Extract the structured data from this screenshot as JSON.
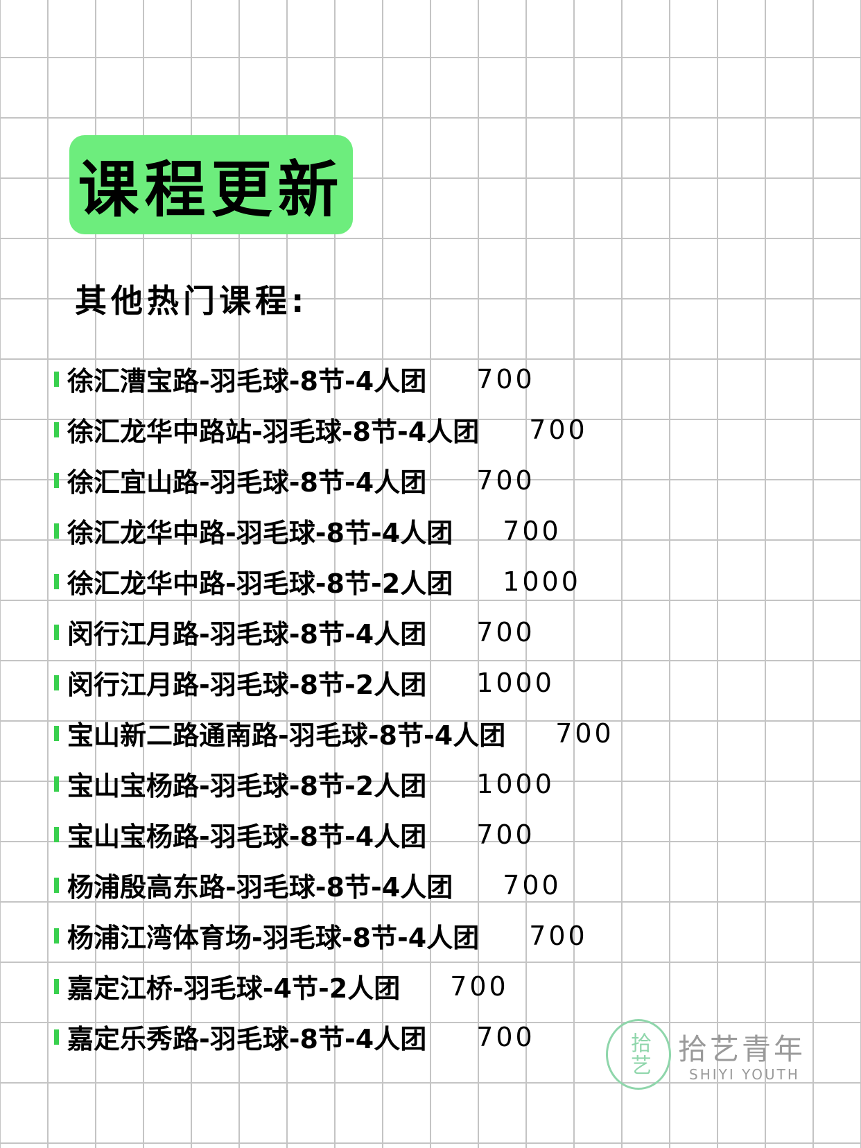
{
  "header": {
    "title": "课程更新",
    "subtitle": "其他热门课程:"
  },
  "courses": [
    {
      "name": "徐汇漕宝路-羽毛球-8节-4人团",
      "price": 700
    },
    {
      "name": "徐汇龙华中路站-羽毛球-8节-4人团",
      "price": 700
    },
    {
      "name": "徐汇宜山路-羽毛球-8节-4人团",
      "price": 700
    },
    {
      "name": "徐汇龙华中路-羽毛球-8节-4人团",
      "price": 700
    },
    {
      "name": "徐汇龙华中路-羽毛球-8节-2人团",
      "price": 1000
    },
    {
      "name": "闵行江月路-羽毛球-8节-4人团",
      "price": 700
    },
    {
      "name": "闵行江月路-羽毛球-8节-2人团",
      "price": 1000
    },
    {
      "name": "宝山新二路通南路-羽毛球-8节-4人团",
      "price": 700
    },
    {
      "name": "宝山宝杨路-羽毛球-8节-2人团",
      "price": 1000
    },
    {
      "name": "宝山宝杨路-羽毛球-8节-4人团",
      "price": 700
    },
    {
      "name": "杨浦殷高东路-羽毛球-8节-4人团",
      "price": 700
    },
    {
      "name": "杨浦江湾体育场-羽毛球-8节-4人团",
      "price": 700
    },
    {
      "name": "嘉定江桥-羽毛球-4节-2人团",
      "price": 700
    },
    {
      "name": "嘉定乐秀路-羽毛球-8节-4人团",
      "price": 700
    }
  ],
  "watermark": {
    "logo": "拾艺",
    "name": "拾艺青年",
    "english": "SHIYI YOUTH"
  }
}
